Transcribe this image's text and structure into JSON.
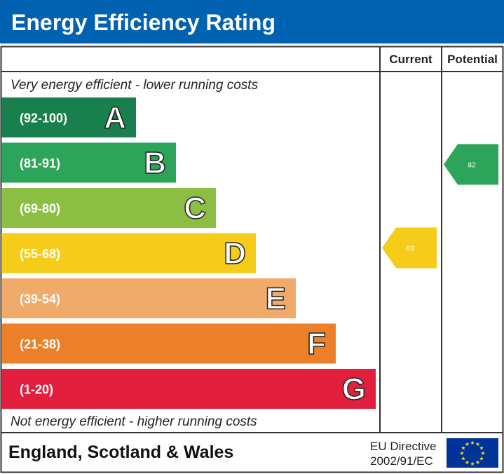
{
  "title": "Energy Efficiency Rating",
  "columns": {
    "current": "Current",
    "potential": "Potential"
  },
  "top_note": "Very energy efficient - lower running costs",
  "bottom_note": "Not energy efficient - higher running costs",
  "footer": {
    "region": "England, Scotland & Wales",
    "directive_line1": "EU Directive",
    "directive_line2": "2002/91/EC"
  },
  "colors": {
    "title_bar": "#0062b0",
    "flag": "#003399",
    "stars": "#ffdd00"
  },
  "chart_data": {
    "type": "bar",
    "bands": [
      {
        "letter": "A",
        "range": "(92-100)",
        "color": "#1a7f4f"
      },
      {
        "letter": "B",
        "range": "(81-91)",
        "color": "#2ca55a"
      },
      {
        "letter": "C",
        "range": "(69-80)",
        "color": "#8dbe44"
      },
      {
        "letter": "D",
        "range": "(55-68)",
        "color": "#f5cc1a"
      },
      {
        "letter": "E",
        "range": "(39-54)",
        "color": "#f0aa6a"
      },
      {
        "letter": "F",
        "range": "(21-38)",
        "color": "#ec8029"
      },
      {
        "letter": "G",
        "range": "(1-20)",
        "color": "#e21f3c"
      }
    ],
    "current": {
      "value": 63,
      "band": "D",
      "color": "#f5cc1a"
    },
    "potential": {
      "value": 82,
      "band": "B",
      "color": "#2ca55a"
    }
  }
}
